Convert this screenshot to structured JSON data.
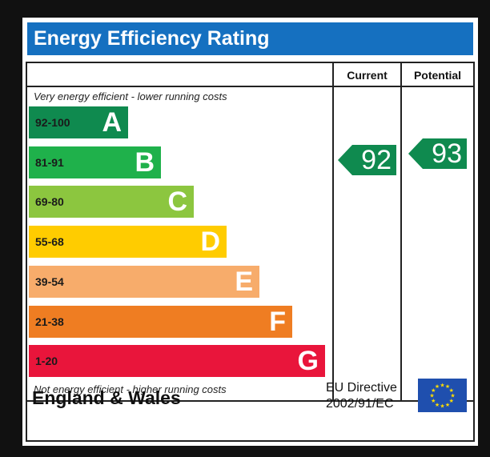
{
  "title": "Energy Efficiency Rating",
  "columns": {
    "current": "Current",
    "potential": "Potential"
  },
  "notes": {
    "top": "Very energy efficient - lower running costs",
    "bottom": "Not energy efficient - higher running costs"
  },
  "chart_data": {
    "type": "bar",
    "title": "Energy Efficiency Rating",
    "categories": [
      "A",
      "B",
      "C",
      "D",
      "E",
      "F",
      "G"
    ],
    "ranges": [
      "92-100",
      "81-91",
      "69-80",
      "55-68",
      "39-54",
      "21-38",
      "1-20"
    ],
    "colors": [
      "#0f8a4f",
      "#1fb14b",
      "#8cc63f",
      "#ffcc00",
      "#f7ac6b",
      "#ef7d22",
      "#e9153b"
    ],
    "current": 92,
    "potential": 93,
    "current_band": "A",
    "potential_band": "A",
    "arrow_color": "#0f8a4f"
  },
  "footer": {
    "region": "England & Wales",
    "directive_line1": "EU Directive",
    "directive_line2": "2002/91/EC"
  }
}
